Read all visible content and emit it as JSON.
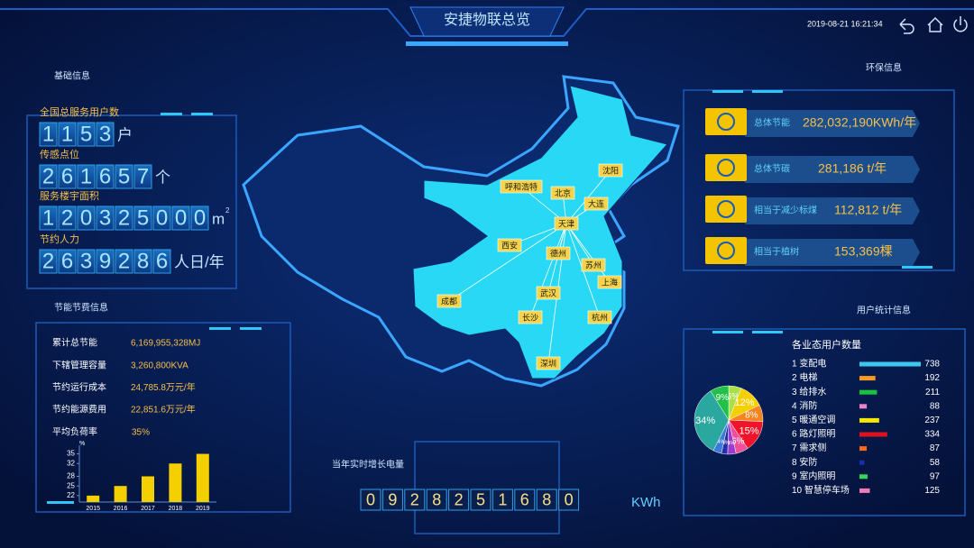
{
  "header": {
    "title": "安捷物联总览",
    "datetime": "2019-08-21 16:21:34"
  },
  "basic": {
    "title": "基础信息",
    "items": [
      {
        "label": "全国总服务用户数",
        "digits": [
          "1",
          "1",
          "5",
          "3"
        ],
        "unit": "户"
      },
      {
        "label": "传感点位",
        "digits": [
          "2",
          "6",
          "1",
          "6",
          "5",
          "7"
        ],
        "unit": "个"
      },
      {
        "label": "服务楼宇面积",
        "digits": [
          "1",
          "2",
          "0",
          "3",
          "2",
          "5",
          "0",
          "0",
          "0"
        ],
        "unit": "m",
        "unit_sup": "2"
      },
      {
        "label": "节约人力",
        "digits": [
          "2",
          "6",
          "3",
          "9",
          "2",
          "8",
          "6"
        ],
        "unit": "人日/年"
      }
    ]
  },
  "energy": {
    "title": "节能节费信息",
    "rows": [
      [
        "累计总节能",
        "6,169,955,328MJ"
      ],
      [
        "下辖管理容量",
        "3,260,800KVA"
      ],
      [
        "节约运行成本",
        "24,785.8万元/年"
      ],
      [
        "节约能源费用",
        "22,851.6万元/年"
      ],
      [
        "平均负荷率",
        "35%"
      ]
    ],
    "chart": {
      "type": "bar",
      "unit": "%",
      "categories": [
        "2015",
        "2016",
        "2017",
        "2018",
        "2019"
      ],
      "values": [
        22,
        25,
        28,
        32,
        35
      ],
      "color": "#f5d000",
      "ylim": [
        20,
        36
      ],
      "yticks": [
        22,
        25,
        28,
        32,
        35
      ]
    }
  },
  "map": {
    "cities": [
      "呼和浩特",
      "北京",
      "沈阳",
      "大连",
      "天津",
      "西安",
      "德州",
      "苏州",
      "上海",
      "成都",
      "武汉",
      "长沙",
      "杭州",
      "深圳"
    ]
  },
  "env": {
    "title": "环保信息",
    "items": [
      {
        "label": "总体节能",
        "value": "282,032,190KWh/年"
      },
      {
        "label": "总体节碳",
        "value": "281,186 t/年"
      },
      {
        "label": "相当于减少标煤",
        "value": "112,812 t/年"
      },
      {
        "label": "相当于植树",
        "value": "153,369棵"
      }
    ]
  },
  "users": {
    "title": "用户统计信息",
    "chart_title": "各业态用户数量",
    "items": [
      {
        "label": "1 变配电",
        "value": 738,
        "color": "#3cc6f0"
      },
      {
        "label": "2 电梯",
        "value": 192,
        "color": "#f59a23"
      },
      {
        "label": "3 给排水",
        "value": 211,
        "color": "#19c23c"
      },
      {
        "label": "4 消防",
        "value": 88,
        "color": "#e887c8"
      },
      {
        "label": "5 暖通空调",
        "value": 237,
        "color": "#f5e600"
      },
      {
        "label": "6 路灯照明",
        "value": 334,
        "color": "#e0101e"
      },
      {
        "label": "7 需求侧",
        "value": 87,
        "color": "#f56a1a"
      },
      {
        "label": "8 安防",
        "value": 58,
        "color": "#1a2fb0"
      },
      {
        "label": "9 室内照明",
        "value": 97,
        "color": "#35d65a"
      },
      {
        "label": "10 智慧停车场",
        "value": 125,
        "color": "#f07ab8"
      }
    ],
    "pie": {
      "type": "pie",
      "values": [
        6,
        12,
        8,
        15,
        6,
        4,
        3,
        4,
        34,
        9
      ],
      "value_labels": [
        "6%",
        "12%",
        "8%",
        "15%",
        "6%",
        "4%",
        "3%",
        "4%",
        "34%",
        "9%"
      ],
      "colors": [
        "#a8e04a",
        "#f5d000",
        "#f5841f",
        "#f0142a",
        "#f0509a",
        "#9b3ad0",
        "#2330a8",
        "#3c7ad8",
        "#2aa8a0",
        "#22c04a"
      ]
    }
  },
  "realtime": {
    "title": "当年实时增长电量",
    "digits": [
      "0",
      "9",
      "2",
      "8",
      "2",
      "5",
      "1",
      "6",
      "8",
      "0"
    ],
    "unit": "KWh"
  }
}
